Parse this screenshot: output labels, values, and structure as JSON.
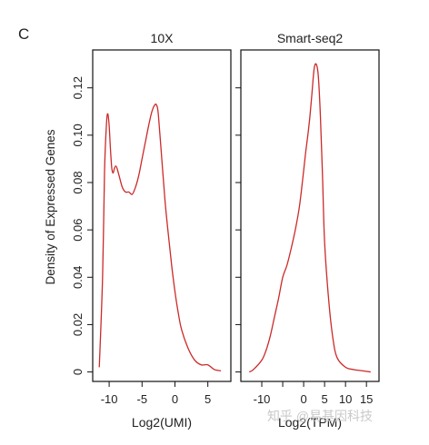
{
  "figure": {
    "panel_letter": "C",
    "ylabel": "Density of Expressed Genes",
    "watermark": "知乎 @易基因科技"
  },
  "chart_data": [
    {
      "type": "line",
      "title": "10X",
      "xlabel": "Log2(UMI)",
      "ylabel": "Density of Expressed Genes",
      "xlim": [
        -12.5,
        8.5
      ],
      "ylim": [
        -0.004,
        0.136
      ],
      "xticks": [
        -10,
        -5,
        0,
        5
      ],
      "xtick_labels": [
        "-10",
        "-5",
        "0",
        "5"
      ],
      "yticks": [
        0,
        0.02,
        0.04,
        0.06,
        0.08,
        0.1,
        0.12
      ],
      "ytick_labels": [
        "0",
        "0.02",
        "0.04",
        "0.06",
        "0.08",
        "0.10",
        "0.12"
      ],
      "grid": false,
      "color": "#cc2a2a",
      "x": [
        -11.5,
        -11.0,
        -10.7,
        -10.4,
        -10.2,
        -10.0,
        -9.8,
        -9.6,
        -9.4,
        -9.2,
        -9.0,
        -8.8,
        -8.5,
        -8.0,
        -7.5,
        -7.0,
        -6.5,
        -6.0,
        -5.5,
        -5.0,
        -4.5,
        -4.0,
        -3.5,
        -3.0,
        -2.7,
        -2.5,
        -2.0,
        -1.5,
        -1.0,
        -0.5,
        0.0,
        0.5,
        1.0,
        2.0,
        3.0,
        4.0,
        5.0,
        6.0,
        7.0
      ],
      "y": [
        0.002,
        0.04,
        0.085,
        0.105,
        0.109,
        0.104,
        0.094,
        0.086,
        0.084,
        0.086,
        0.087,
        0.086,
        0.083,
        0.078,
        0.076,
        0.076,
        0.075,
        0.078,
        0.083,
        0.09,
        0.097,
        0.104,
        0.11,
        0.113,
        0.112,
        0.108,
        0.09,
        0.072,
        0.058,
        0.045,
        0.034,
        0.025,
        0.018,
        0.01,
        0.005,
        0.003,
        0.003,
        0.001,
        0.0005
      ]
    },
    {
      "type": "line",
      "title": "Smart-seq2",
      "xlabel": "Log2(TPM)",
      "xlim": [
        -15,
        18
      ],
      "ylim": [
        -0.004,
        0.136
      ],
      "xticks": [
        -10,
        -5,
        0,
        5,
        10,
        15
      ],
      "xtick_labels": [
        "-10",
        "",
        "0",
        "5",
        "10",
        "15"
      ],
      "yticks": [
        0,
        0.02,
        0.04,
        0.06,
        0.08,
        0.1,
        0.12
      ],
      "ytick_labels": [],
      "grid": false,
      "color": "#cc2a2a",
      "x": [
        -13.0,
        -12.0,
        -10.0,
        -9.0,
        -8.0,
        -7.0,
        -6.0,
        -5.0,
        -4.0,
        -3.0,
        -2.0,
        -1.0,
        0.0,
        0.5,
        1.0,
        1.5,
        2.0,
        2.5,
        3.0,
        3.5,
        4.0,
        4.5,
        5.0,
        6.0,
        7.0,
        8.0,
        10.0,
        12.0,
        14.0,
        16.0
      ],
      "y": [
        0.0,
        0.001,
        0.005,
        0.009,
        0.015,
        0.023,
        0.031,
        0.04,
        0.045,
        0.052,
        0.06,
        0.07,
        0.085,
        0.093,
        0.1,
        0.108,
        0.118,
        0.128,
        0.13,
        0.125,
        0.108,
        0.083,
        0.055,
        0.03,
        0.014,
        0.006,
        0.002,
        0.001,
        0.0005,
        0.0
      ]
    }
  ]
}
